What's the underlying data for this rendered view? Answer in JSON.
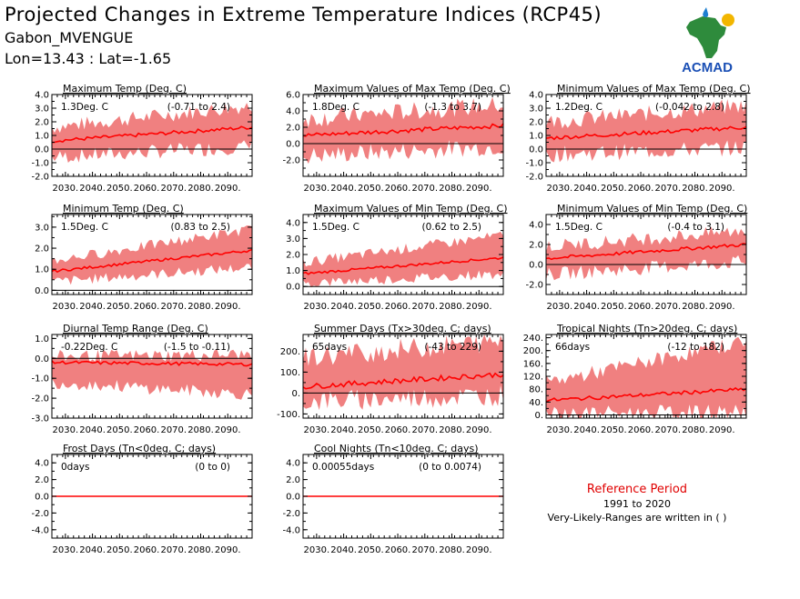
{
  "header": {
    "title": "Projected Changes in Extreme Temperature Indices (RCP45)",
    "station": "Gabon_MVENGUE",
    "coords": "Lon=13.43 : Lat=-1.65"
  },
  "logo": {
    "text": "ACMAD"
  },
  "reference": {
    "title": "Reference Period",
    "years": "1991 to 2020",
    "note": "Very-Likely-Ranges are written in ( )"
  },
  "colors": {
    "band": "#f08080",
    "line": "#ff0000",
    "zero": "#000000"
  },
  "x_tick_labels": [
    "2030.",
    "2040.",
    "2050.",
    "2060.",
    "2070.",
    "2080.",
    "2090."
  ],
  "chart_data": [
    {
      "type": "area",
      "title": "Maximum Temp (Deg. C)",
      "stat": "1.3Deg. C",
      "range": "(-0.71 to 2.4)",
      "x": [
        2025,
        2099
      ],
      "ylim": [
        -2.0,
        4.0
      ],
      "yticks": [
        "-2.0",
        "-1.0",
        "0.0",
        "1.0",
        "2.0",
        "3.0",
        "4.0"
      ],
      "median": {
        "start": 0.6,
        "end": 1.6
      },
      "band_low": {
        "start": -0.6,
        "end": 0.2
      },
      "band_high": {
        "start": 1.6,
        "end": 3.2
      }
    },
    {
      "type": "area",
      "title": "Maximum Values of Max Temp (Deg. C)",
      "stat": "1.8Deg. C",
      "range": "(-1.3 to 3.7)",
      "x": [
        2025,
        2099
      ],
      "ylim": [
        -4.0,
        6.0
      ],
      "yticks": [
        "-2.0",
        "0.0",
        "2.0",
        "4.0",
        "6.0"
      ],
      "median": {
        "start": 1.0,
        "end": 2.2
      },
      "band_low": {
        "start": -1.5,
        "end": -0.3
      },
      "band_high": {
        "start": 3.0,
        "end": 4.8
      }
    },
    {
      "type": "area",
      "title": "Minimum Values of Max Temp (Deg. C)",
      "stat": "1.2Deg. C",
      "range": "(-0.042 to 2.8)",
      "x": [
        2025,
        2099
      ],
      "ylim": [
        -2.0,
        4.0
      ],
      "yticks": [
        "-2.0",
        "-1.0",
        "0.0",
        "1.0",
        "2.0",
        "3.0",
        "4.0"
      ],
      "median": {
        "start": 0.8,
        "end": 1.6
      },
      "band_low": {
        "start": -0.4,
        "end": 0.1
      },
      "band_high": {
        "start": 2.0,
        "end": 3.2
      }
    },
    {
      "type": "area",
      "title": "Minimum Temp (Deg. C)",
      "stat": "1.5Deg. C",
      "range": "(0.83 to 2.5)",
      "x": [
        2025,
        2099
      ],
      "ylim": [
        -0.2,
        3.6
      ],
      "yticks": [
        "0.0",
        "1.0",
        "2.0",
        "3.0"
      ],
      "median": {
        "start": 0.9,
        "end": 1.9
      },
      "band_low": {
        "start": 0.4,
        "end": 1.1
      },
      "band_high": {
        "start": 1.4,
        "end": 2.9
      }
    },
    {
      "type": "area",
      "title": "Maximum Values of Min Temp (Deg. C)",
      "stat": "1.5Deg. C",
      "range": "(0.62 to 2.5)",
      "x": [
        2025,
        2099
      ],
      "ylim": [
        -0.5,
        4.5
      ],
      "yticks": [
        "0.0",
        "1.0",
        "2.0",
        "3.0",
        "4.0"
      ],
      "median": {
        "start": 0.8,
        "end": 1.8
      },
      "band_low": {
        "start": 0.2,
        "end": 0.8
      },
      "band_high": {
        "start": 1.5,
        "end": 3.2
      }
    },
    {
      "type": "area",
      "title": "Minimum Values of Min Temp (Deg. C)",
      "stat": "1.5Deg. C",
      "range": "(-0.4 to 3.1)",
      "x": [
        2025,
        2099
      ],
      "ylim": [
        -3.0,
        5.0
      ],
      "yticks": [
        "-2.0",
        "0.0",
        "2.0",
        "4.0"
      ],
      "median": {
        "start": 0.6,
        "end": 2.0
      },
      "band_low": {
        "start": -1.0,
        "end": 0.3
      },
      "band_high": {
        "start": 1.8,
        "end": 3.4
      }
    },
    {
      "type": "area",
      "title": "Diurnal Temp Range (Deg. C)",
      "stat": "-0.22Deg. C",
      "range": "(-1.5 to -0.11)",
      "x": [
        2025,
        2099
      ],
      "ylim": [
        -3.0,
        1.2
      ],
      "yticks": [
        "-3.0",
        "-2.0",
        "-1.0",
        "0.0",
        "1.0"
      ],
      "median": {
        "start": -0.2,
        "end": -0.3
      },
      "band_low": {
        "start": -1.2,
        "end": -1.8
      },
      "band_high": {
        "start": 0.1,
        "end": 0.2
      }
    },
    {
      "type": "area",
      "title": "Summer Days (Tx>30deg. C; days)",
      "stat": "65days",
      "range": "(-43 to 229)",
      "x": [
        2025,
        2099
      ],
      "ylim": [
        -120,
        280
      ],
      "yticks": [
        "-100.",
        "0.",
        "100.",
        "200."
      ],
      "median": {
        "start": 30,
        "end": 90
      },
      "band_low": {
        "start": -40,
        "end": -10
      },
      "band_high": {
        "start": 170,
        "end": 250
      }
    },
    {
      "type": "area",
      "title": "Tropical Nights (Tn>20deg. C; days)",
      "stat": "66days",
      "range": "(-12 to 182)",
      "x": [
        2025,
        2099
      ],
      "ylim": [
        -10,
        250
      ],
      "yticks": [
        "0.",
        "40.",
        "80.",
        "120.",
        "160.",
        "200.",
        "240."
      ],
      "median": {
        "start": 45,
        "end": 80
      },
      "band_low": {
        "start": 5,
        "end": 10
      },
      "band_high": {
        "start": 100,
        "end": 230
      }
    },
    {
      "type": "line",
      "title": "Frost Days (Tn<0deg. C; days)",
      "stat": "0days",
      "range": "(0 to 0)",
      "x": [
        2025,
        2099
      ],
      "ylim": [
        -5.0,
        5.0
      ],
      "yticks": [
        "-4.0",
        "-2.0",
        "0.0",
        "2.0",
        "4.0"
      ],
      "median": {
        "start": 0,
        "end": 0
      },
      "band_low": {
        "start": 0,
        "end": 0
      },
      "band_high": {
        "start": 0,
        "end": 0
      }
    },
    {
      "type": "line",
      "title": "Cool Nights (Tn<10deg. C; days)",
      "stat": "0.00055days",
      "range": "(0 to 0.0074)",
      "x": [
        2025,
        2099
      ],
      "ylim": [
        -5.0,
        5.0
      ],
      "yticks": [
        "-4.0",
        "-2.0",
        "0.0",
        "2.0",
        "4.0"
      ],
      "median": {
        "start": 0,
        "end": 0
      },
      "band_low": {
        "start": 0,
        "end": 0
      },
      "band_high": {
        "start": 0,
        "end": 0.15
      }
    }
  ]
}
